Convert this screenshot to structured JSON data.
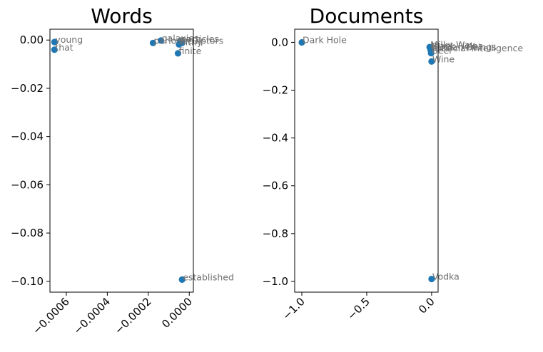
{
  "colors": {
    "point": "#1f77b4",
    "label": "#6f6f6f",
    "axis": "#000000"
  },
  "chart_data": [
    {
      "type": "scatter",
      "title": "Words",
      "xlim": [
        -0.00068,
        2e-05
      ],
      "ylim": [
        -0.1045,
        0.0045
      ],
      "xticks": [
        -0.0006,
        -0.0004,
        -0.0002,
        0.0
      ],
      "xticklabels": [
        "−0.0006",
        "−0.0004",
        "−0.0002",
        "0.0000"
      ],
      "yticks": [
        0.0,
        -0.02,
        -0.04,
        -0.06,
        -0.08,
        -0.1
      ],
      "yticklabels": [
        "0.00",
        "−0.02",
        "−0.04",
        "−0.06",
        "−0.08",
        "−0.10"
      ],
      "points": [
        {
          "x": -0.000658,
          "y": -0.0008,
          "label": "young"
        },
        {
          "x": -0.000658,
          "y": -0.004,
          "label": "that"
        },
        {
          "x": -0.000177,
          "y": -0.0012,
          "label": "period"
        },
        {
          "x": -0.000138,
          "y": -0.0002,
          "label": "galaxies"
        },
        {
          "x": -4.5e-05,
          "y": -0.0005,
          "label": "particles"
        },
        {
          "x": -5e-05,
          "y": -0.0018,
          "label": "filthy"
        },
        {
          "x": -3.5e-05,
          "y": -0.0012,
          "label": "sculptors"
        },
        {
          "x": -5.5e-05,
          "y": -0.0055,
          "label": "finite"
        },
        {
          "x": -3.5e-05,
          "y": -0.0993,
          "label": "established"
        }
      ]
    },
    {
      "type": "scatter",
      "title": "Documents",
      "xlim": [
        -1.055,
        0.05
      ],
      "ylim": [
        -1.045,
        0.055
      ],
      "xticks": [
        -1.0,
        -0.5,
        0.0
      ],
      "xticklabels": [
        "−1.0",
        "−0.5",
        "0.0"
      ],
      "yticks": [
        0.0,
        -0.2,
        -0.4,
        -0.6,
        -0.8,
        -1.0
      ],
      "yticklabels": [
        "0.0",
        "−0.2",
        "−0.4",
        "−0.6",
        "−0.8",
        "−1.0"
      ],
      "points": [
        {
          "x": -1.0,
          "y": 0.0,
          "label": "Dark Hole"
        },
        {
          "x": -0.015,
          "y": -0.02,
          "label": "Milky Way"
        },
        {
          "x": -0.01,
          "y": -0.025,
          "label": "Black Holes"
        },
        {
          "x": -0.008,
          "y": -0.03,
          "label": "Human Beings"
        },
        {
          "x": -0.005,
          "y": -0.035,
          "label": "Artificial Intelligence"
        },
        {
          "x": -0.004,
          "y": -0.045,
          "label": "Beer"
        },
        {
          "x": 0.0,
          "y": -0.08,
          "label": "Wine"
        },
        {
          "x": 0.0,
          "y": -0.99,
          "label": "Vodka"
        }
      ]
    }
  ]
}
